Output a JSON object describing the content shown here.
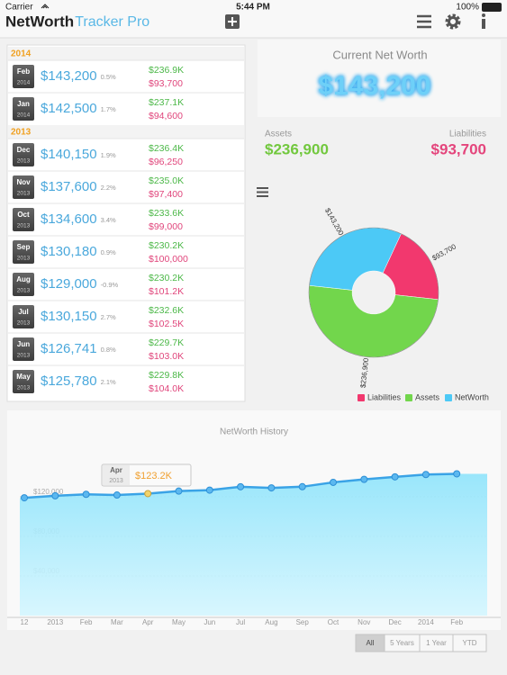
{
  "status_bar": {
    "carrier": "Carrier",
    "time": "5:44 PM",
    "battery": "100%"
  },
  "header": {
    "title": "NetWorth",
    "subtitle": "Tracker Pro"
  },
  "history_list": {
    "groups": [
      {
        "year": "2014",
        "rows": [
          {
            "month": "Feb",
            "year": "2014",
            "net_worth": "$143,200",
            "change": "0.5%",
            "assets": "$236.9K",
            "liabilities": "$93,700"
          },
          {
            "month": "Jan",
            "year": "2014",
            "net_worth": "$142,500",
            "change": "1.7%",
            "assets": "$237.1K",
            "liabilities": "$94,600"
          }
        ]
      },
      {
        "year": "2013",
        "rows": [
          {
            "month": "Dec",
            "year": "2013",
            "net_worth": "$140,150",
            "change": "1.9%",
            "assets": "$236.4K",
            "liabilities": "$96,250"
          },
          {
            "month": "Nov",
            "year": "2013",
            "net_worth": "$137,600",
            "change": "2.2%",
            "assets": "$235.0K",
            "liabilities": "$97,400"
          },
          {
            "month": "Oct",
            "year": "2013",
            "net_worth": "$134,600",
            "change": "3.4%",
            "assets": "$233.6K",
            "liabilities": "$99,000"
          },
          {
            "month": "Sep",
            "year": "2013",
            "net_worth": "$130,180",
            "change": "0.9%",
            "assets": "$230.2K",
            "liabilities": "$100,000"
          },
          {
            "month": "Aug",
            "year": "2013",
            "net_worth": "$129,000",
            "change": "-0.9%",
            "assets": "$230.2K",
            "liabilities": "$101.2K"
          },
          {
            "month": "Jul",
            "year": "2013",
            "net_worth": "$130,150",
            "change": "2.7%",
            "assets": "$232.6K",
            "liabilities": "$102.5K"
          },
          {
            "month": "Jun",
            "year": "2013",
            "net_worth": "$126,741",
            "change": "0.8%",
            "assets": "$229.7K",
            "liabilities": "$103.0K"
          },
          {
            "month": "May",
            "year": "2013",
            "net_worth": "$125,780",
            "change": "2.1%",
            "assets": "$229.8K",
            "liabilities": "$104.0K"
          }
        ]
      }
    ]
  },
  "summary": {
    "title": "Current Net Worth",
    "net_worth": "$143,200",
    "assets_label": "Assets",
    "assets": "$236,900",
    "liabilities_label": "Liabilities",
    "liabilities": "$93,700"
  },
  "chart_data": [
    {
      "type": "pie",
      "categories": [
        "Liabilities",
        "Assets",
        "NetWorth"
      ],
      "values": [
        93700,
        236900,
        143200
      ],
      "value_labels": [
        "$93,700",
        "$236,900",
        "$143,200"
      ],
      "colors": [
        "#f2386e",
        "#72d64c",
        "#4cc9f6"
      ],
      "legend": "bottom right"
    },
    {
      "type": "line",
      "title": "NetWorth History",
      "categories": [
        "12",
        "2013",
        "Feb",
        "Mar",
        "Apr",
        "May",
        "Jun",
        "Jul",
        "Aug",
        "Sep",
        "Oct",
        "Nov",
        "Dec",
        "2014",
        "Feb"
      ],
      "values": [
        119000,
        121000,
        122500,
        121800,
        123200,
        125780,
        126741,
        130150,
        129000,
        130180,
        134600,
        137600,
        140150,
        142500,
        143200
      ],
      "ylim": [
        0,
        160000
      ],
      "yticks": [
        {
          "value": 40000,
          "label": "$40,000"
        },
        {
          "value": 80000,
          "label": "$80,000"
        },
        {
          "value": 120000,
          "label": "$120,000"
        }
      ],
      "grid": true,
      "color": "#3aa3e6",
      "highlight_color": "#f2d36b",
      "annotation": {
        "month": "Apr",
        "year": "2013",
        "value": "$123.2K"
      }
    }
  ],
  "range_buttons": [
    "All",
    "5 Years",
    "1 Year",
    "YTD"
  ]
}
